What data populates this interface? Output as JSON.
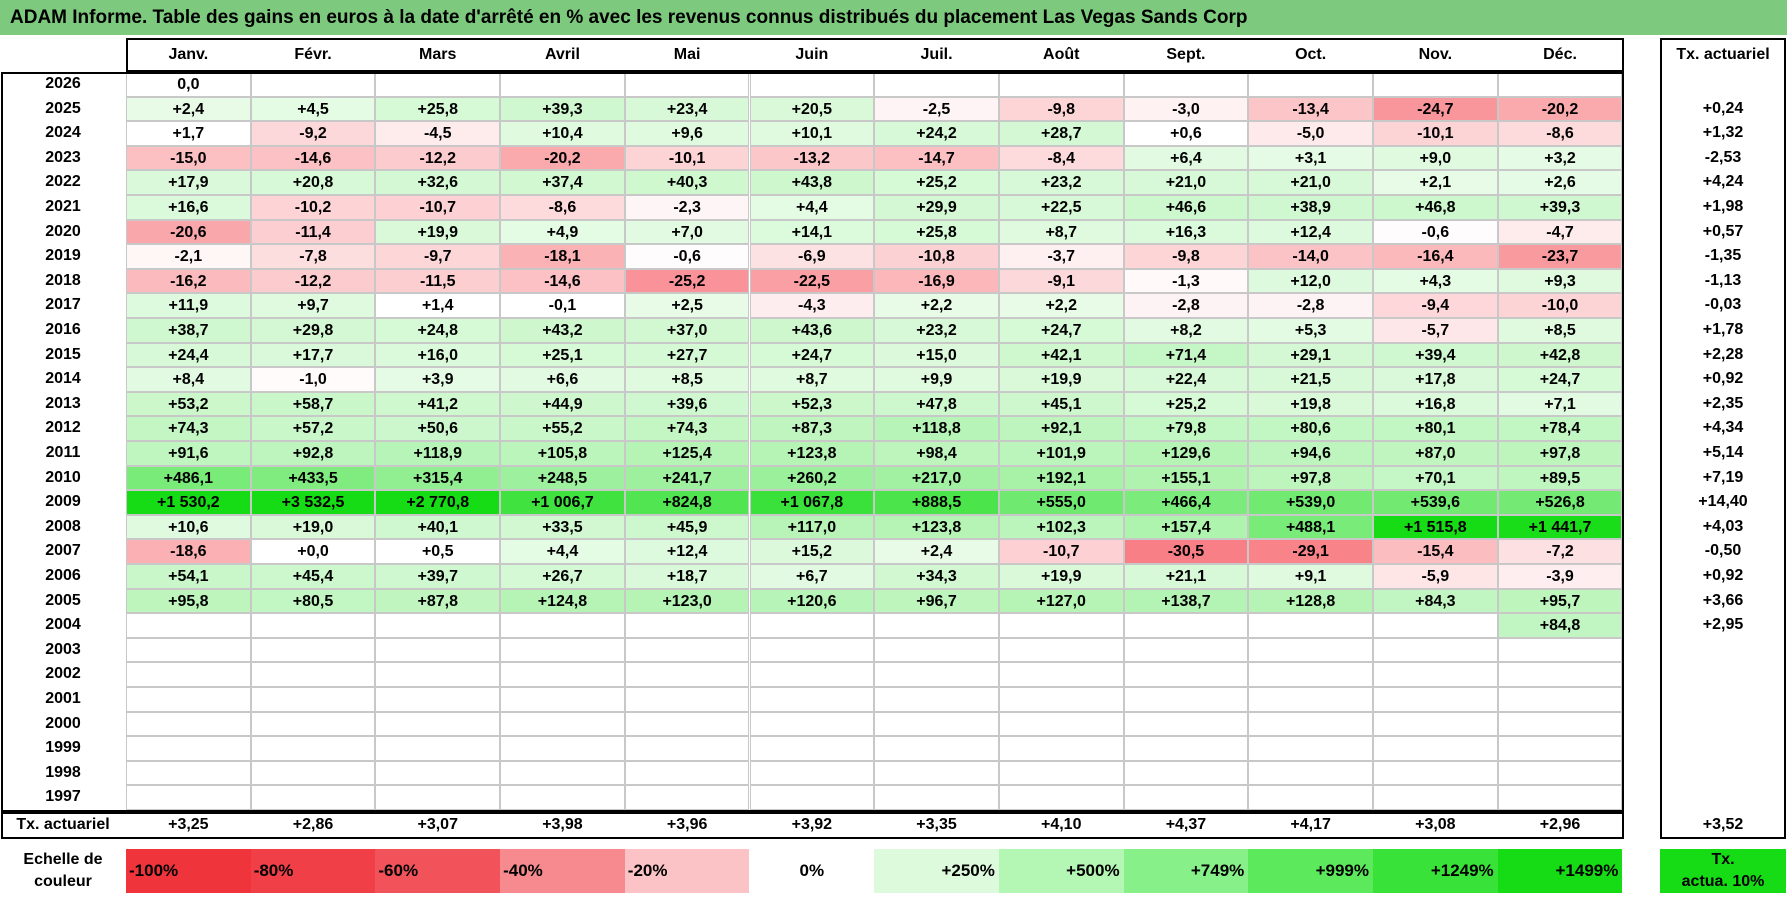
{
  "title": "ADAM Informe. Table des gains en euros à la date d'arrêté en % avec les revenus connus distribués du placement Las Vegas Sands Corp",
  "months": [
    "Janv.",
    "Févr.",
    "Mars",
    "Avril",
    "Mai",
    "Juin",
    "Juil.",
    "Août",
    "Sept.",
    "Oct.",
    "Nov.",
    "Déc."
  ],
  "rate_header": "Tx. actuariel",
  "rows": [
    {
      "year": "2026",
      "values": [
        "0,0",
        "",
        "",
        "",
        "",
        "",
        "",
        "",
        "",
        "",
        "",
        ""
      ],
      "rate": ""
    },
    {
      "year": "2025",
      "values": [
        "+2,4",
        "+4,5",
        "+25,8",
        "+39,3",
        "+23,4",
        "+20,5",
        "-2,5",
        "-9,8",
        "-3,0",
        "-13,4",
        "-24,7",
        "-20,2"
      ],
      "rate": "+0,24"
    },
    {
      "year": "2024",
      "values": [
        "+1,7",
        "-9,2",
        "-4,5",
        "+10,4",
        "+9,6",
        "+10,1",
        "+24,2",
        "+28,7",
        "+0,6",
        "-5,0",
        "-10,1",
        "-8,6"
      ],
      "rate": "+1,32"
    },
    {
      "year": "2023",
      "values": [
        "-15,0",
        "-14,6",
        "-12,2",
        "-20,2",
        "-10,1",
        "-13,2",
        "-14,7",
        "-8,4",
        "+6,4",
        "+3,1",
        "+9,0",
        "+3,2"
      ],
      "rate": "-2,53"
    },
    {
      "year": "2022",
      "values": [
        "+17,9",
        "+20,8",
        "+32,6",
        "+37,4",
        "+40,3",
        "+43,8",
        "+25,2",
        "+23,2",
        "+21,0",
        "+21,0",
        "+2,1",
        "+2,6"
      ],
      "rate": "+4,24"
    },
    {
      "year": "2021",
      "values": [
        "+16,6",
        "-10,2",
        "-10,7",
        "-8,6",
        "-2,3",
        "+4,4",
        "+29,9",
        "+22,5",
        "+46,6",
        "+38,9",
        "+46,8",
        "+39,3"
      ],
      "rate": "+1,98"
    },
    {
      "year": "2020",
      "values": [
        "-20,6",
        "-11,4",
        "+19,9",
        "+4,9",
        "+7,0",
        "+14,1",
        "+25,8",
        "+8,7",
        "+16,3",
        "+12,4",
        "-0,6",
        "-4,7"
      ],
      "rate": "+0,57"
    },
    {
      "year": "2019",
      "values": [
        "-2,1",
        "-7,8",
        "-9,7",
        "-18,1",
        "-0,6",
        "-6,9",
        "-10,8",
        "-3,7",
        "-9,8",
        "-14,0",
        "-16,4",
        "-23,7"
      ],
      "rate": "-1,35"
    },
    {
      "year": "2018",
      "values": [
        "-16,2",
        "-12,2",
        "-11,5",
        "-14,6",
        "-25,2",
        "-22,5",
        "-16,9",
        "-9,1",
        "-1,3",
        "+12,0",
        "+4,3",
        "+9,3"
      ],
      "rate": "-1,13"
    },
    {
      "year": "2017",
      "values": [
        "+11,9",
        "+9,7",
        "+1,4",
        "-0,1",
        "+2,5",
        "-4,3",
        "+2,2",
        "+2,2",
        "-2,8",
        "-2,8",
        "-9,4",
        "-10,0"
      ],
      "rate": "-0,03"
    },
    {
      "year": "2016",
      "values": [
        "+38,7",
        "+29,8",
        "+24,8",
        "+43,2",
        "+37,0",
        "+43,6",
        "+23,2",
        "+24,7",
        "+8,2",
        "+5,3",
        "-5,7",
        "+8,5"
      ],
      "rate": "+1,78"
    },
    {
      "year": "2015",
      "values": [
        "+24,4",
        "+17,7",
        "+16,0",
        "+25,1",
        "+27,7",
        "+24,7",
        "+15,0",
        "+42,1",
        "+71,4",
        "+29,1",
        "+39,4",
        "+42,8"
      ],
      "rate": "+2,28"
    },
    {
      "year": "2014",
      "values": [
        "+8,4",
        "-1,0",
        "+3,9",
        "+6,6",
        "+8,5",
        "+8,7",
        "+9,9",
        "+19,9",
        "+22,4",
        "+21,5",
        "+17,8",
        "+24,7"
      ],
      "rate": "+0,92"
    },
    {
      "year": "2013",
      "values": [
        "+53,2",
        "+58,7",
        "+41,2",
        "+44,9",
        "+39,6",
        "+52,3",
        "+47,8",
        "+45,1",
        "+25,2",
        "+19,8",
        "+16,8",
        "+7,1"
      ],
      "rate": "+2,35"
    },
    {
      "year": "2012",
      "values": [
        "+74,3",
        "+57,2",
        "+50,6",
        "+55,2",
        "+74,3",
        "+87,3",
        "+118,8",
        "+92,1",
        "+79,8",
        "+80,6",
        "+80,1",
        "+78,4"
      ],
      "rate": "+4,34"
    },
    {
      "year": "2011",
      "values": [
        "+91,6",
        "+92,8",
        "+118,9",
        "+105,8",
        "+125,4",
        "+123,8",
        "+98,4",
        "+101,9",
        "+129,6",
        "+94,6",
        "+87,0",
        "+97,8"
      ],
      "rate": "+5,14"
    },
    {
      "year": "2010",
      "values": [
        "+486,1",
        "+433,5",
        "+315,4",
        "+248,5",
        "+241,7",
        "+260,2",
        "+217,0",
        "+192,1",
        "+155,1",
        "+97,8",
        "+70,1",
        "+89,5"
      ],
      "rate": "+7,19"
    },
    {
      "year": "2009",
      "values": [
        "+1 530,2",
        "+3 532,5",
        "+2 770,8",
        "+1 006,7",
        "+824,8",
        "+1 067,8",
        "+888,5",
        "+555,0",
        "+466,4",
        "+539,0",
        "+539,6",
        "+526,8"
      ],
      "rate": "+14,40"
    },
    {
      "year": "2008",
      "values": [
        "+10,6",
        "+19,0",
        "+40,1",
        "+33,5",
        "+45,9",
        "+117,0",
        "+123,8",
        "+102,3",
        "+157,4",
        "+488,1",
        "+1 515,8",
        "+1 441,7"
      ],
      "rate": "+4,03"
    },
    {
      "year": "2007",
      "values": [
        "-18,6",
        "+0,0",
        "+0,5",
        "+4,4",
        "+12,4",
        "+15,2",
        "+2,4",
        "-10,7",
        "-30,5",
        "-29,1",
        "-15,4",
        "-7,2"
      ],
      "rate": "-0,50"
    },
    {
      "year": "2006",
      "values": [
        "+54,1",
        "+45,4",
        "+39,7",
        "+26,7",
        "+18,7",
        "+6,7",
        "+34,3",
        "+19,9",
        "+21,1",
        "+9,1",
        "-5,9",
        "-3,9"
      ],
      "rate": "+0,92"
    },
    {
      "year": "2005",
      "values": [
        "+95,8",
        "+80,5",
        "+87,8",
        "+124,8",
        "+123,0",
        "+120,6",
        "+96,7",
        "+127,0",
        "+138,7",
        "+128,8",
        "+84,3",
        "+95,7"
      ],
      "rate": "+3,66"
    },
    {
      "year": "2004",
      "values": [
        "",
        "",
        "",
        "",
        "",
        "",
        "",
        "",
        "",
        "",
        "",
        "+84,8"
      ],
      "rate": "+2,95"
    },
    {
      "year": "2003",
      "values": [
        "",
        "",
        "",
        "",
        "",
        "",
        "",
        "",
        "",
        "",
        "",
        ""
      ],
      "rate": ""
    },
    {
      "year": "2002",
      "values": [
        "",
        "",
        "",
        "",
        "",
        "",
        "",
        "",
        "",
        "",
        "",
        ""
      ],
      "rate": ""
    },
    {
      "year": "2001",
      "values": [
        "",
        "",
        "",
        "",
        "",
        "",
        "",
        "",
        "",
        "",
        "",
        ""
      ],
      "rate": ""
    },
    {
      "year": "2000",
      "values": [
        "",
        "",
        "",
        "",
        "",
        "",
        "",
        "",
        "",
        "",
        "",
        ""
      ],
      "rate": ""
    },
    {
      "year": "1999",
      "values": [
        "",
        "",
        "",
        "",
        "",
        "",
        "",
        "",
        "",
        "",
        "",
        ""
      ],
      "rate": ""
    },
    {
      "year": "1998",
      "values": [
        "",
        "",
        "",
        "",
        "",
        "",
        "",
        "",
        "",
        "",
        "",
        ""
      ],
      "rate": ""
    },
    {
      "year": "1997",
      "values": [
        "",
        "",
        "",
        "",
        "",
        "",
        "",
        "",
        "",
        "",
        "",
        ""
      ],
      "rate": ""
    }
  ],
  "footer": {
    "label": "Tx. actuariel",
    "values": [
      "+3,25",
      "+2,86",
      "+3,07",
      "+3,98",
      "+3,96",
      "+3,92",
      "+3,35",
      "+4,10",
      "+4,37",
      "+4,17",
      "+3,08",
      "+2,96"
    ],
    "total": "+3,52"
  },
  "scale": {
    "label_line1": "Echelle de",
    "label_line2": "couleur",
    "items": [
      {
        "text": "-100%",
        "color": "#f0343c"
      },
      {
        "text": "-80%",
        "color": "#f03f47"
      },
      {
        "text": "-60%",
        "color": "#f2535a"
      },
      {
        "text": "-40%",
        "color": "#f68a8e"
      },
      {
        "text": "-20%",
        "color": "#fbc3c5"
      },
      {
        "text": "0%",
        "color": "#ffffff"
      },
      {
        "text": "+250%",
        "color": "#ddfadd"
      },
      {
        "text": "+500%",
        "color": "#b4f6b4"
      },
      {
        "text": "+749%",
        "color": "#88f088"
      },
      {
        "text": "+999%",
        "color": "#5cea5c"
      },
      {
        "text": "+1249%",
        "color": "#38e238"
      },
      {
        "text": "+1499%",
        "color": "#15dc15"
      }
    ],
    "rate_line1": "Tx.",
    "rate_line2": "actua. 10%",
    "rate_color": "#15dc15"
  },
  "colors": {
    "title_bg": "#7dc97d",
    "negative": "#f0343c",
    "positive": "#15dc15",
    "border": "#c8c8c8",
    "frame": "#000000"
  }
}
